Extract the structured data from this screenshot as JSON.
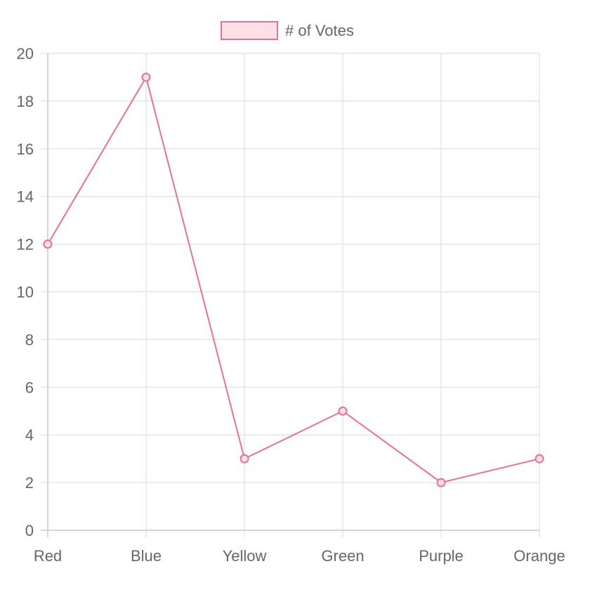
{
  "chart_data": {
    "type": "line",
    "categories": [
      "Red",
      "Blue",
      "Yellow",
      "Green",
      "Purple",
      "Orange"
    ],
    "series": [
      {
        "name": "# of Votes",
        "values": [
          12,
          19,
          3,
          5,
          2,
          3
        ]
      }
    ],
    "ylim": [
      0,
      20
    ],
    "yticks": [
      0,
      2,
      4,
      6,
      8,
      10,
      12,
      14,
      16,
      18,
      20
    ],
    "grid": true,
    "legend_position": "top",
    "colors": {
      "line": "#e8728c",
      "point_fill": "#ffdde4",
      "legend_fill": "#ffdfe6",
      "grid": "#e5e5e5",
      "axis": "#c8c8c8",
      "text": "#666666"
    }
  }
}
